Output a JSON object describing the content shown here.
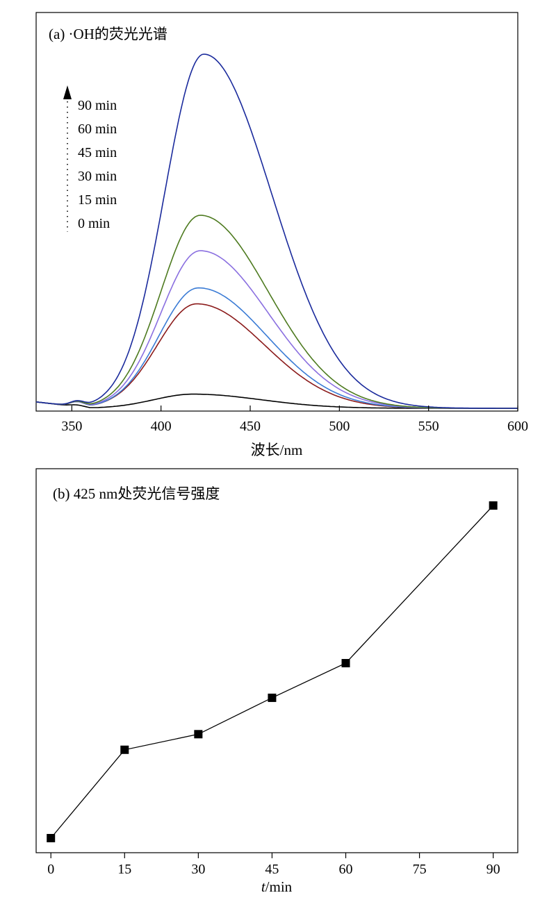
{
  "chart_data": [
    {
      "type": "line",
      "title": "(a) ·OH的荧光光谱",
      "xlabel": "波长/nm",
      "ylabel": "",
      "xlim": [
        330,
        600
      ],
      "ylim": [
        0,
        1.0
      ],
      "x_ticks": [
        350,
        400,
        450,
        500,
        550,
        600
      ],
      "x_tick_labels": [
        "350",
        "400",
        "450",
        "500",
        "550",
        "600"
      ],
      "y_ticks_shown": false,
      "grid": false,
      "legend": {
        "position": "top-left",
        "entries": [
          "90 min",
          "60 min",
          "45 min",
          "30 min",
          "15 min",
          "0 min"
        ],
        "arrow": "increasing-time-upward"
      },
      "peak_wavelength": 420,
      "series": [
        {
          "name": "0 min",
          "color": "#000000",
          "peak_x": 418,
          "peak_y": 0.04
        },
        {
          "name": "15 min",
          "color": "#8b1a1a",
          "peak_x": 420,
          "peak_y": 0.295
        },
        {
          "name": "30 min",
          "color": "#3a7bd5",
          "peak_x": 421,
          "peak_y": 0.34
        },
        {
          "name": "45 min",
          "color": "#8a6fe0",
          "peak_x": 422,
          "peak_y": 0.445
        },
        {
          "name": "60 min",
          "color": "#4d7a1f",
          "peak_x": 422,
          "peak_y": 0.545
        },
        {
          "name": "90 min",
          "color": "#1a2a9c",
          "peak_x": 424,
          "peak_y": 1.0
        }
      ]
    },
    {
      "type": "line",
      "title": "(b) 425 nm处荧光信号强度",
      "xlabel_italic": "t",
      "xlabel_rest": "/min",
      "ylabel": "",
      "xlim": [
        -3,
        95
      ],
      "ylim": [
        0.0,
        1.05
      ],
      "x_ticks": [
        0,
        15,
        30,
        45,
        60,
        75,
        90
      ],
      "x_tick_labels": [
        "0",
        "15",
        "30",
        "45",
        "60",
        "75",
        "90"
      ],
      "y_ticks_shown": false,
      "grid": false,
      "marker": "square",
      "series": [
        {
          "x": [
            0,
            15,
            30,
            45,
            60,
            90
          ],
          "y": [
            0.04,
            0.295,
            0.34,
            0.445,
            0.545,
            1.0
          ]
        }
      ]
    }
  ]
}
